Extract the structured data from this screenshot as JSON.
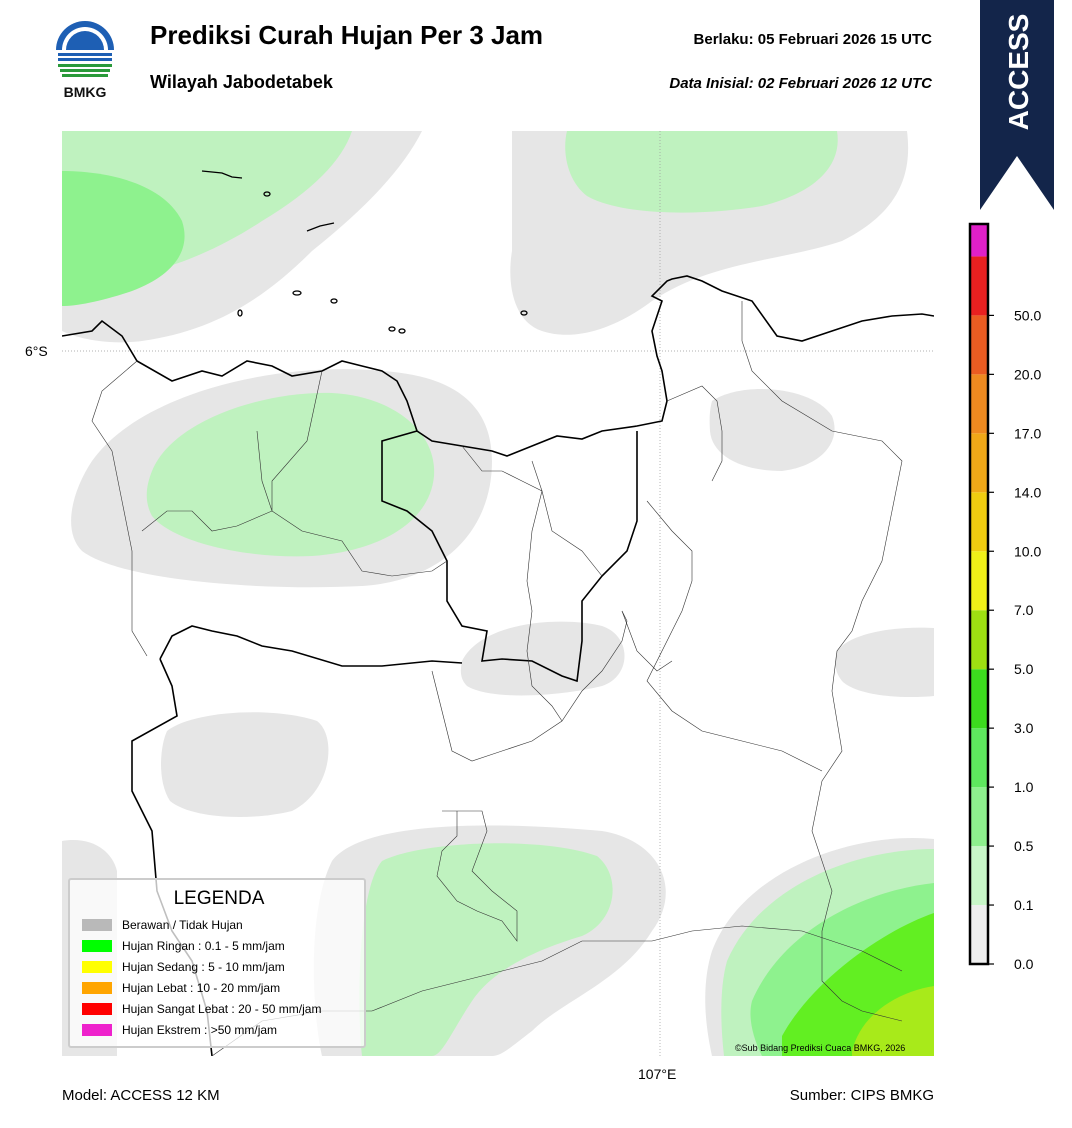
{
  "header": {
    "title": "Prediksi Curah Hujan Per 3 Jam",
    "subtitle": "Wilayah Jabodetabek",
    "valid_label": "Berlaku:  05 Februari 2026 15 UTC",
    "initial_label": "Data Inisial:  02 Februari 2026 12 UTC"
  },
  "logo": {
    "text": "BMKG"
  },
  "banner": {
    "text": "ACCESS",
    "color": "#13254a"
  },
  "map": {
    "lat_label": "6°S",
    "lon_label": "107°E",
    "copyright": "©Sub Bidang Prediksi Cuaca BMKG, 2026"
  },
  "legend": {
    "title": "LEGENDA",
    "items": [
      {
        "label": "Berawan / Tidak Hujan",
        "color": "#b9b9b9"
      },
      {
        "label": "Hujan Ringan : 0.1 - 5 mm/jam",
        "color": "#00ff00"
      },
      {
        "label": "Hujan Sedang : 5 - 10 mm/jam",
        "color": "#ffff00"
      },
      {
        "label": "Hujan Lebat : 10 - 20 mm/jam",
        "color": "#ffa500"
      },
      {
        "label": "Hujan Sangat Lebat : 20 - 50 mm/jam",
        "color": "#ff0000"
      },
      {
        "label": "Hujan Ekstrem : >50 mm/jam",
        "color": "#ee22cc"
      }
    ]
  },
  "colorbar": {
    "ticks": [
      "0.0",
      "0.1",
      "0.5",
      "1.0",
      "3.0",
      "5.0",
      "7.0",
      "10.0",
      "14.0",
      "17.0",
      "20.0",
      "50.0"
    ],
    "colors": [
      "#eeeeee",
      "#c8f6c8",
      "#8ef08e",
      "#5ee85e",
      "#3cdc1e",
      "#9ee012",
      "#f0f018",
      "#f0cc10",
      "#f0a818",
      "#ee8a20",
      "#ea5c22",
      "#e82020",
      "#e020c8"
    ]
  },
  "footer": {
    "model": "Model: ACCESS 12 KM",
    "source": "Sumber: CIPS BMKG"
  }
}
